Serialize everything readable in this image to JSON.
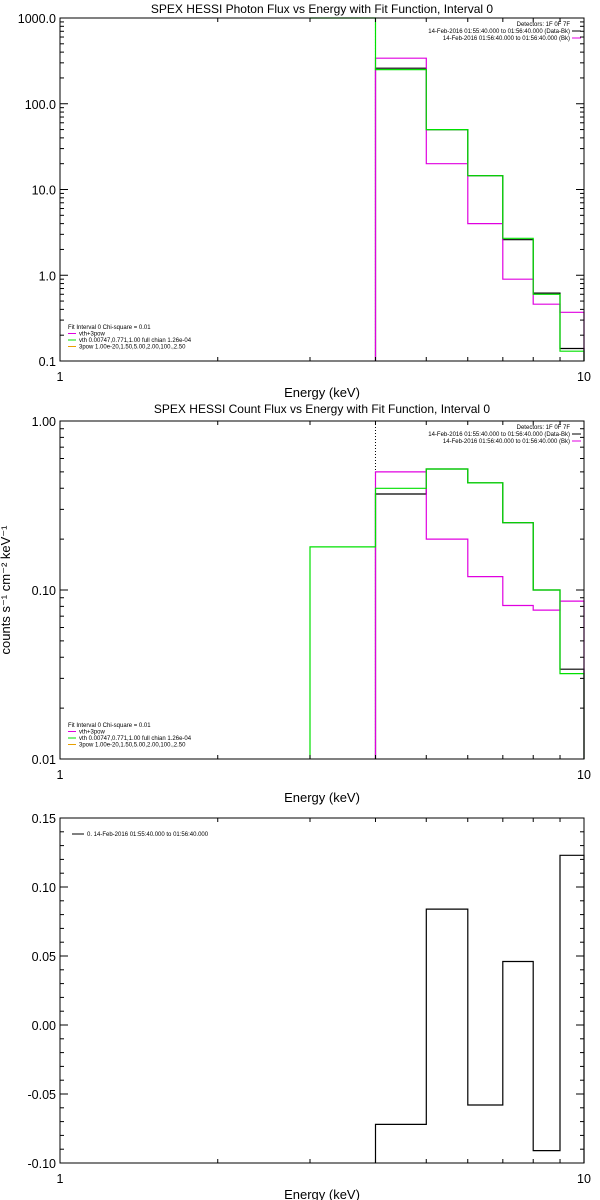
{
  "colors": {
    "data_black": "#000000",
    "model_magenta": "#e000e0",
    "model_green": "#00e000",
    "model_orange": "#e8a000",
    "axis": "#000000"
  },
  "chart_data": [
    {
      "type": "line",
      "step": true,
      "title": "SPEX HESSI Photon Flux vs Energy with Fit Function, Interval 0",
      "xlabel": "Energy (keV)",
      "ylabel": "",
      "xscale": "log",
      "yscale": "log",
      "xlim": [
        1,
        10
      ],
      "ylim": [
        0.1,
        1000
      ],
      "xticks": [
        "1",
        "10"
      ],
      "yticks": [
        "0.1",
        "1.0",
        "10.0",
        "100.0",
        "1000.0"
      ],
      "vline_energy": 4,
      "edges": [
        4,
        5,
        6,
        7,
        8,
        9,
        10
      ],
      "series": [
        {
          "name": "14-Feb-2016 01:55:40.000 to 01:56:40.000 (Data-Bk)",
          "color": "#000000",
          "values": [
            260,
            50,
            14.5,
            2.6,
            0.62,
            0.14
          ]
        },
        {
          "name": "vth+3pow",
          "color": "#e000e0",
          "values": [
            340,
            20,
            4,
            0.9,
            0.46,
            0.37
          ]
        },
        {
          "name": "vth 0.00747,0.771,1.00  full chian 1.26e-04",
          "color": "#00e000",
          "start_edge": 3,
          "start_value": 1000,
          "values": [
            250,
            50,
            14.5,
            2.7,
            0.6,
            0.13
          ]
        }
      ],
      "info_lines": [
        {
          "text": "Detectors: 1F 0F 7F",
          "color": "#000000"
        },
        {
          "text": "14-Feb-2016 01:55:40.000 to 01:56:40.000 (Data-Bk)",
          "color": "#000000"
        },
        {
          "text": "14-Feb-2016 01:56:40.000 to 01:56:40.000 (Bk)",
          "color": "#e000e0"
        }
      ],
      "legend": [
        {
          "text": "Fit Interval  0   Chi-square = 0.01",
          "color": ""
        },
        {
          "text": "vth+3pow",
          "color": "#e000e0"
        },
        {
          "text": "vth 0.00747,0.771,1.00  full chian 1.26e-04",
          "color": "#00e000"
        },
        {
          "text": "3pow 1.00e-20,1.50,5.00,2.00,100.,2.50",
          "color": "#e8a000"
        }
      ]
    },
    {
      "type": "line",
      "step": true,
      "title": "SPEX HESSI Count Flux vs Energy with Fit Function, Interval 0",
      "xlabel": "Energy (keV)",
      "ylabel": "counts s⁻¹ cm⁻² keV⁻¹",
      "xscale": "log",
      "yscale": "log",
      "xlim": [
        1,
        10
      ],
      "ylim": [
        0.01,
        1
      ],
      "xticks": [
        "1",
        "10"
      ],
      "yticks": [
        "0.01",
        "0.10",
        "1.00"
      ],
      "vline_energy": 4,
      "edges": [
        4,
        5,
        6,
        7,
        8,
        9,
        10
      ],
      "series": [
        {
          "name": "14-Feb-2016 01:55:40.000 to 01:56:40.000 (Data-Bk)",
          "color": "#000000",
          "values": [
            0.37,
            0.52,
            0.43,
            0.25,
            0.1,
            0.034
          ]
        },
        {
          "name": "vth+3pow",
          "color": "#e000e0",
          "values": [
            0.5,
            0.2,
            0.12,
            0.081,
            0.076,
            0.086
          ]
        },
        {
          "name": "vth 0.00747,0.771,1.00  full chian 1.26e-04",
          "color": "#00e000",
          "start_edge": 3,
          "start_value": 0.01,
          "pre_value": 0.18,
          "values": [
            0.4,
            0.52,
            0.43,
            0.25,
            0.1,
            0.032
          ]
        }
      ],
      "info_lines": [
        {
          "text": "Detectors: 1F 0F 7F",
          "color": "#000000"
        },
        {
          "text": "14-Feb-2016 01:55:40.000 to 01:56:40.000 (Data-Bk)",
          "color": "#000000"
        },
        {
          "text": "14-Feb-2016 01:56:40.000 to 01:56:40.000 (Bk)",
          "color": "#e000e0"
        }
      ],
      "legend": [
        {
          "text": "Fit Interval  0   Chi-square = 0.01",
          "color": ""
        },
        {
          "text": "vth+3pow",
          "color": "#e000e0"
        },
        {
          "text": "vth 0.00747,0.771,1.00  full chian 1.26e-04",
          "color": "#00e000"
        },
        {
          "text": "3pow 1.00e-20,1.50,5.00,2.00,100.,2.50",
          "color": "#e8a000"
        }
      ]
    },
    {
      "type": "line",
      "step": true,
      "title": "",
      "xlabel": "Energy (keV)",
      "ylabel": "",
      "xscale": "log",
      "yscale": "linear",
      "xlim": [
        1,
        10
      ],
      "ylim": [
        -0.1,
        0.15
      ],
      "xticks": [
        "1",
        "10"
      ],
      "yticks": [
        "-0.10",
        "-0.05",
        "0.00",
        "0.05",
        "0.10",
        "0.15"
      ],
      "edges": [
        4,
        5,
        6,
        7,
        8,
        9,
        10
      ],
      "series": [
        {
          "name": "0. 14-Feb-2016 01:55:40.000 to 01:56:40.000",
          "color": "#000000",
          "values": [
            -0.072,
            0.084,
            -0.058,
            0.046,
            -0.091,
            0.123
          ]
        }
      ],
      "legend": [
        {
          "text": "0. 14-Feb-2016 01:55:40.000 to 01:56:40.000",
          "color": "#000000"
        }
      ]
    }
  ]
}
